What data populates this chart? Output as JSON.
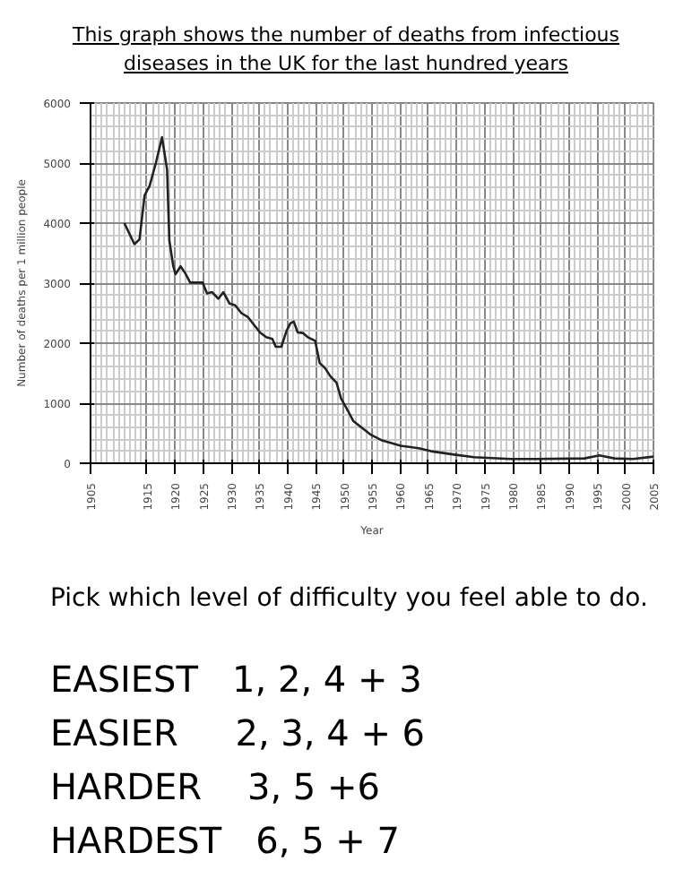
{
  "chart_data": {
    "type": "line",
    "title": "This graph shows the number of deaths from infectious diseases in the UK for the last hundred years",
    "xlabel": "Year",
    "ylabel": "Number of deaths per 1 million people",
    "x": [
      1911.0,
      1912.8,
      1913.7,
      1914.6,
      1915.5,
      1916.6,
      1917.7,
      1918.6,
      1919.0,
      1919.7,
      1920.1,
      1921.0,
      1921.8,
      1922.7,
      1924.0,
      1924.9,
      1925.7,
      1926.6,
      1927.7,
      1928.6,
      1929.7,
      1930.7,
      1931.8,
      1932.9,
      1934.0,
      1935.1,
      1936.2,
      1937.3,
      1937.9,
      1938.9,
      1939.8,
      1940.5,
      1941.1,
      1941.8,
      1942.7,
      1943.6,
      1944.9,
      1945.7,
      1946.7,
      1947.6,
      1948.7,
      1949.5,
      1950.8,
      1951.7,
      1954.7,
      1956.8,
      1960.1,
      1963.3,
      1965.5,
      1969.9,
      1973.1,
      1979.6,
      1984.0,
      1992.7,
      1995.4,
      1998.1,
      2001.4,
      2005.0
    ],
    "series": [
      {
        "color": "#222222",
        "values": [
          4000,
          3650,
          3730,
          4460,
          4620,
          5000,
          5430,
          4890,
          3710,
          3280,
          3150,
          3280,
          3170,
          3010,
          3010,
          3010,
          2830,
          2850,
          2740,
          2850,
          2660,
          2630,
          2500,
          2440,
          2310,
          2180,
          2100,
          2070,
          1940,
          1940,
          2200,
          2330,
          2360,
          2180,
          2170,
          2100,
          2040,
          1670,
          1580,
          1450,
          1340,
          1080,
          860,
          700,
          480,
          380,
          290,
          250,
          200,
          140,
          100,
          70,
          70,
          80,
          130,
          80,
          70,
          110
        ]
      }
    ],
    "xlim": [
      1905,
      2005
    ],
    "xticks": [
      1905,
      1915,
      1920,
      1925,
      1930,
      1935,
      1940,
      1945,
      1950,
      1955,
      1960,
      1965,
      1970,
      1975,
      1980,
      1985,
      1990,
      1995,
      2000,
      2005
    ],
    "ylim": [
      0,
      6000
    ],
    "yticks": [
      0,
      1000,
      2000,
      3000,
      4000,
      5000,
      6000
    ],
    "grid": true,
    "marker": "none",
    "line_style": "solid",
    "annotations": [
      "Pick which level of difficulty you feel able to do.",
      "EASIEST   1, 2, 4 + 3",
      "EASIER     2, 3, 4 + 6",
      "HARDER    3, 5 +6",
      "HARDEST   6, 5 + 7"
    ]
  }
}
